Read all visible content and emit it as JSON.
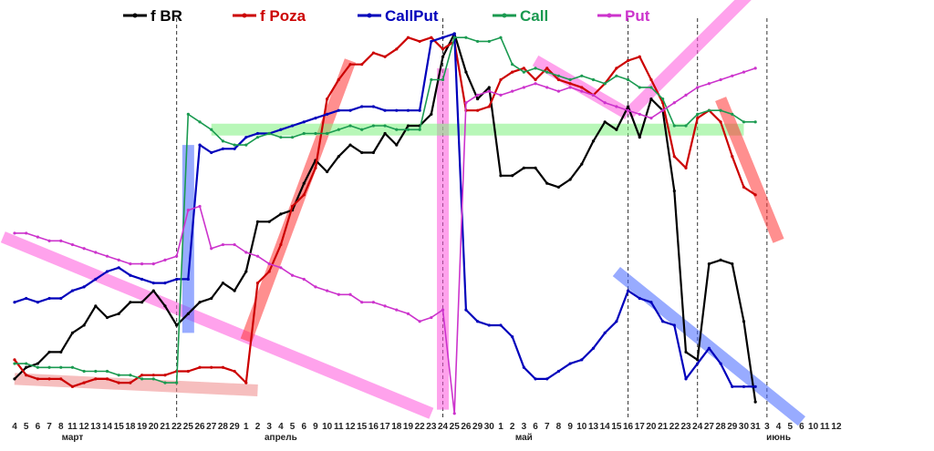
{
  "chart_data": {
    "type": "line",
    "title": "",
    "xlabel": "",
    "ylabel": "",
    "ylim": [
      0,
      100
    ],
    "grid": false,
    "legend_position": "top",
    "x_ticks": [
      "4",
      "5",
      "6",
      "7",
      "8",
      "11",
      "12",
      "13",
      "14",
      "15",
      "18",
      "19",
      "20",
      "21",
      "22",
      "25",
      "26",
      "27",
      "28",
      "29",
      "1",
      "2",
      "3",
      "4",
      "5",
      "6",
      "9",
      "10",
      "11",
      "12",
      "15",
      "16",
      "17",
      "18",
      "19",
      "22",
      "23",
      "24",
      "25",
      "26",
      "29",
      "30",
      "1",
      "2",
      "3",
      "6",
      "7",
      "8",
      "9",
      "10",
      "13",
      "14",
      "15",
      "16",
      "17",
      "20",
      "21",
      "22",
      "23",
      "24",
      "27",
      "28",
      "29",
      "30",
      "31",
      "3",
      "4",
      "5",
      "6",
      "10",
      "11",
      "12"
    ],
    "month_labels": [
      {
        "label": "март",
        "x_index": 5
      },
      {
        "label": "апрель",
        "x_index": 23
      },
      {
        "label": "май",
        "x_index": 44
      },
      {
        "label": "июнь",
        "x_index": 66
      }
    ],
    "vlines_at_index": [
      14,
      37,
      53,
      59,
      65
    ],
    "series": [
      {
        "name": "f BR",
        "color": "#000000",
        "values": [
          10,
          13,
          14,
          17,
          17,
          22,
          24,
          29,
          26,
          27,
          30,
          30,
          33,
          29,
          24,
          27,
          30,
          31,
          35,
          33,
          38,
          51,
          51,
          53,
          54,
          61,
          67,
          64,
          68,
          71,
          69,
          69,
          74,
          71,
          76,
          76,
          79,
          94,
          100,
          90,
          83,
          86,
          63,
          63,
          65,
          65,
          61,
          60,
          62,
          66,
          72,
          77,
          75,
          81,
          73,
          83,
          80,
          59,
          17,
          15,
          40,
          41,
          40,
          25,
          4
        ]
      },
      {
        "name": "f Poza",
        "color": "#cc0000",
        "values": [
          15,
          11,
          10,
          10,
          10,
          8,
          9,
          10,
          10,
          9,
          9,
          11,
          11,
          11,
          12,
          12,
          13,
          13,
          13,
          12,
          9,
          35,
          38,
          45,
          55,
          58,
          65,
          83,
          88,
          92,
          92,
          95,
          94,
          96,
          99,
          98,
          99,
          96,
          98,
          80,
          80,
          81,
          88,
          90,
          91,
          88,
          91,
          88,
          87,
          86,
          84,
          87,
          91,
          93,
          94,
          88,
          82,
          68,
          65,
          78,
          80,
          77,
          68,
          60,
          58
        ]
      },
      {
        "name": "CallPut",
        "color": "#0000bb",
        "values": [
          30,
          31,
          30,
          31,
          31,
          33,
          34,
          36,
          38,
          39,
          37,
          36,
          35,
          35,
          36,
          36,
          71,
          69,
          70,
          70,
          73,
          74,
          74,
          75,
          76,
          77,
          78,
          79,
          80,
          80,
          81,
          81,
          80,
          80,
          80,
          80,
          98,
          99,
          100,
          28,
          25,
          24,
          24,
          21,
          13,
          10,
          10,
          12,
          14,
          15,
          18,
          22,
          25,
          33,
          31,
          30,
          25,
          24,
          10,
          14,
          18,
          14,
          8,
          8,
          8
        ]
      },
      {
        "name": "Call",
        "color": "#1a9a50",
        "values": [
          14,
          14,
          13,
          13,
          13,
          13,
          12,
          12,
          12,
          11,
          11,
          10,
          10,
          9,
          9,
          79,
          77,
          75,
          72,
          71,
          71,
          73,
          74,
          73,
          73,
          74,
          74,
          74,
          75,
          76,
          75,
          76,
          76,
          75,
          75,
          75,
          88,
          88,
          99,
          99,
          98,
          98,
          99,
          92,
          90,
          91,
          90,
          89,
          88,
          89,
          88,
          87,
          89,
          88,
          86,
          86,
          83,
          76,
          76,
          79,
          80,
          80,
          79,
          77,
          77
        ]
      },
      {
        "name": "Put",
        "color": "#cc33cc",
        "values": [
          48,
          48,
          47,
          46,
          46,
          45,
          44,
          43,
          42,
          41,
          40,
          40,
          40,
          41,
          42,
          54,
          55,
          44,
          45,
          45,
          43,
          42,
          40,
          39,
          37,
          36,
          34,
          33,
          32,
          32,
          30,
          30,
          29,
          28,
          27,
          25,
          26,
          28,
          1,
          82,
          84,
          85,
          84,
          85,
          86,
          87,
          86,
          85,
          86,
          85,
          84,
          82,
          81,
          80,
          79,
          78,
          80,
          82,
          84,
          86,
          87,
          88,
          89,
          90,
          91
        ]
      }
    ],
    "trend_bands": [
      {
        "color": "#ff55dd",
        "from": [
          -1,
          47
        ],
        "to": [
          36,
          1
        ]
      },
      {
        "color": "#ee8888",
        "from": [
          0,
          10
        ],
        "to": [
          21,
          7
        ]
      },
      {
        "color": "#ff3333",
        "from": [
          20,
          20
        ],
        "to": [
          29,
          93
        ]
      },
      {
        "color": "#4466ff",
        "from": [
          15,
          22
        ],
        "to": [
          15,
          71
        ]
      },
      {
        "color": "#ff55dd",
        "from": [
          37,
          2
        ],
        "to": [
          37,
          91
        ]
      },
      {
        "color": "#7ef07e",
        "from": [
          17,
          75
        ],
        "to": [
          63,
          75
        ]
      },
      {
        "color": "#ff55dd",
        "from": [
          45,
          93
        ],
        "to": [
          53,
          79
        ]
      },
      {
        "color": "#ff55dd",
        "from": [
          53,
          79
        ],
        "to": [
          65,
          115
        ]
      },
      {
        "color": "#ff3333",
        "from": [
          61,
          83
        ],
        "to": [
          66,
          46
        ]
      },
      {
        "color": "#4466ff",
        "from": [
          52,
          38
        ],
        "to": [
          68,
          -1
        ]
      }
    ]
  }
}
